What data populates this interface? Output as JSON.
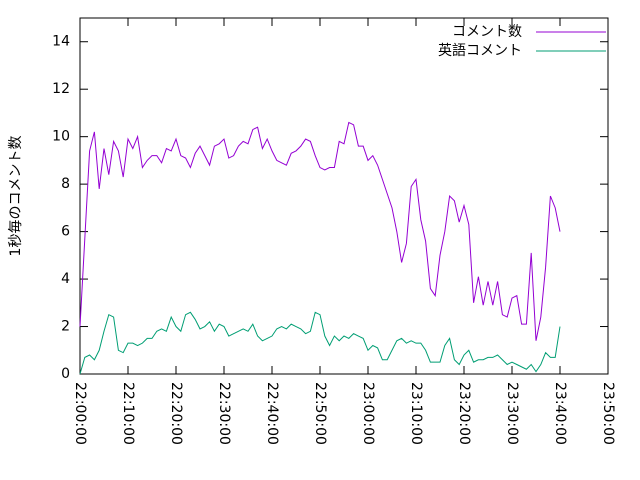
{
  "chart_data": {
    "type": "line",
    "ylabel": "1秒毎のコメント数",
    "x": [
      0,
      1,
      2,
      3,
      4,
      5,
      6,
      7,
      8,
      9,
      10,
      11,
      12,
      13,
      14,
      15,
      16,
      17,
      18,
      19,
      20,
      21,
      22,
      23,
      24,
      25,
      26,
      27,
      28,
      29,
      30,
      31,
      32,
      33,
      34,
      35,
      36,
      37,
      38,
      39,
      40,
      41,
      42,
      43,
      44,
      45,
      46,
      47,
      48,
      49,
      50,
      51,
      52,
      53,
      54,
      55,
      56,
      57,
      58,
      59,
      60,
      61,
      62,
      63,
      64,
      65,
      66,
      67,
      68,
      69,
      70,
      71,
      72,
      73,
      74,
      75,
      76,
      77,
      78,
      79,
      80,
      81,
      82,
      83,
      84,
      85,
      86,
      87,
      88,
      89,
      90,
      91,
      92,
      93,
      94,
      95,
      96,
      97,
      98,
      99,
      100
    ],
    "series": [
      {
        "name": "コメント数",
        "color": "#9400d3",
        "values": [
          2.0,
          5.7,
          9.4,
          10.2,
          7.8,
          9.5,
          8.4,
          9.8,
          9.4,
          8.3,
          9.9,
          9.5,
          10.0,
          8.7,
          9.0,
          9.2,
          9.2,
          8.9,
          9.5,
          9.4,
          9.9,
          9.2,
          9.1,
          8.7,
          9.3,
          9.6,
          9.2,
          8.8,
          9.6,
          9.7,
          9.9,
          9.1,
          9.2,
          9.6,
          9.8,
          9.7,
          10.3,
          10.4,
          9.5,
          9.9,
          9.4,
          9.0,
          8.9,
          8.8,
          9.3,
          9.4,
          9.6,
          9.9,
          9.8,
          9.2,
          8.7,
          8.6,
          8.7,
          8.7,
          9.8,
          9.7,
          10.6,
          10.5,
          9.6,
          9.6,
          9.0,
          9.2,
          8.8,
          8.2,
          7.6,
          7.0,
          6.0,
          4.7,
          5.5,
          7.9,
          8.2,
          6.5,
          5.6,
          3.6,
          3.3,
          5.0,
          6.0,
          7.5,
          7.3,
          6.4,
          7.1,
          6.3,
          3.0,
          4.1,
          2.9,
          3.9,
          2.9,
          3.9,
          2.5,
          2.4,
          3.2,
          3.3,
          2.1,
          2.1,
          5.1,
          1.4,
          2.4,
          4.5,
          7.5,
          7.0,
          6.0
        ]
      },
      {
        "name": "英語コメント",
        "color": "#009e73",
        "values": [
          0,
          0.7,
          0.8,
          0.6,
          1.0,
          1.8,
          2.5,
          2.4,
          1.0,
          0.9,
          1.3,
          1.3,
          1.2,
          1.3,
          1.5,
          1.5,
          1.8,
          1.9,
          1.8,
          2.4,
          2.0,
          1.8,
          2.5,
          2.6,
          2.3,
          1.9,
          2.0,
          2.2,
          1.8,
          2.1,
          2.0,
          1.6,
          1.7,
          1.8,
          1.9,
          1.8,
          2.1,
          1.6,
          1.4,
          1.5,
          1.6,
          1.9,
          2.0,
          1.9,
          2.1,
          2.0,
          1.9,
          1.7,
          1.8,
          2.6,
          2.5,
          1.6,
          1.2,
          1.6,
          1.4,
          1.6,
          1.5,
          1.7,
          1.6,
          1.5,
          1.0,
          1.2,
          1.1,
          0.6,
          0.6,
          1.0,
          1.4,
          1.5,
          1.3,
          1.4,
          1.3,
          1.3,
          1.0,
          0.5,
          0.5,
          0.5,
          1.2,
          1.5,
          0.6,
          0.4,
          0.8,
          1.0,
          0.5,
          0.6,
          0.6,
          0.7,
          0.7,
          0.8,
          0.6,
          0.4,
          0.5,
          0.4,
          0.3,
          0.2,
          0.4,
          0.1,
          0.4,
          0.9,
          0.7,
          0.7,
          2.0
        ]
      }
    ],
    "xlim": [
      0,
      110
    ],
    "xticks": [
      {
        "value": 0,
        "label": "22:00:00"
      },
      {
        "value": 10,
        "label": "22:10:00"
      },
      {
        "value": 20,
        "label": "22:20:00"
      },
      {
        "value": 30,
        "label": "22:30:00"
      },
      {
        "value": 40,
        "label": "22:40:00"
      },
      {
        "value": 50,
        "label": "22:50:00"
      },
      {
        "value": 60,
        "label": "23:00:00"
      },
      {
        "value": 70,
        "label": "23:10:00"
      },
      {
        "value": 80,
        "label": "23:20:00"
      },
      {
        "value": 90,
        "label": "23:30:00"
      },
      {
        "value": 100,
        "label": "23:40:00"
      },
      {
        "value": 110,
        "label": "23:50:00"
      }
    ],
    "ylim": [
      0,
      15
    ],
    "yticks": [
      0,
      2,
      4,
      6,
      8,
      10,
      12,
      14
    ],
    "legend": "top-right"
  }
}
